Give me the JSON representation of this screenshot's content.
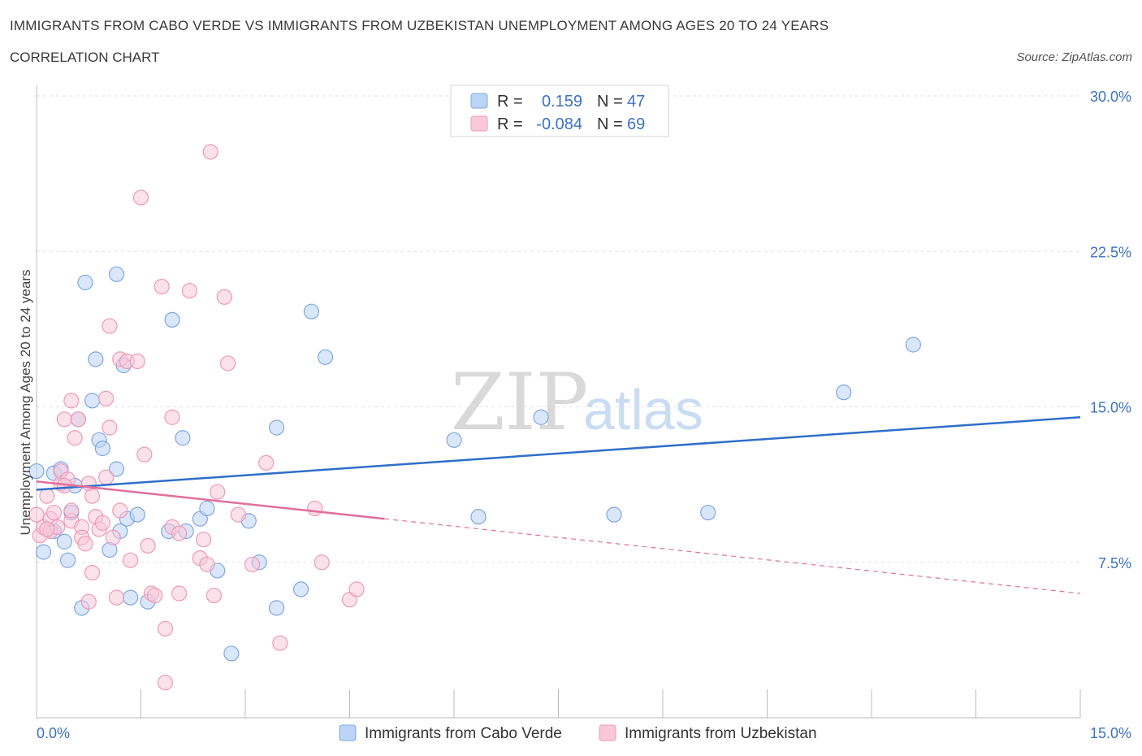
{
  "header": {
    "title": "IMMIGRANTS FROM CABO VERDE VS IMMIGRANTS FROM UZBEKISTAN UNEMPLOYMENT AMONG AGES 20 TO 24 YEARS",
    "subtitle": "CORRELATION CHART",
    "source": "Source: ZipAtlas.com"
  },
  "watermark": {
    "zip": "ZIP",
    "atlas": "atlas"
  },
  "legend": {
    "series1": {
      "r_label": "R =",
      "r_value": "0.159",
      "n_label": "N =",
      "n_value": "47"
    },
    "series2": {
      "r_label": "R =",
      "r_value": "-0.084",
      "n_label": "N =",
      "n_value": "69"
    }
  },
  "colors": {
    "blue_fill": "#bcd4f5",
    "blue_stroke": "#7fa7e0",
    "blue_line": "#2f6fc9",
    "pink_fill": "#f8c8d8",
    "pink_stroke": "#ee9ab6",
    "pink_line": "#e0709a",
    "grid": "#dde3ea",
    "axis": "#bbbbbb"
  },
  "chart_data": {
    "type": "scatter",
    "title": "IMMIGRANTS FROM CABO VERDE VS IMMIGRANTS FROM UZBEKISTAN UNEMPLOYMENT AMONG AGES 20 TO 24 YEARS",
    "xlabel": "",
    "ylabel": "Unemployment Among Ages 20 to 24 years",
    "xlim": [
      0,
      15
    ],
    "ylim": [
      0,
      30
    ],
    "x_tick_labels": [
      "0.0%",
      "15.0%"
    ],
    "y_ticks": [
      7.5,
      15.0,
      22.5,
      30.0
    ],
    "y_tick_labels": [
      "7.5%",
      "15.0%",
      "22.5%",
      "30.0%"
    ],
    "grid": true,
    "legend_position": "top-center",
    "series": [
      {
        "name": "Immigrants from Cabo Verde",
        "color": "#bcd4f5",
        "r": 0.159,
        "n": 47,
        "trend": {
          "x": [
            0,
            15
          ],
          "y": [
            11.0,
            14.5
          ],
          "solid_to": 15
        },
        "points": [
          [
            0.0,
            11.9
          ],
          [
            0.1,
            8.0
          ],
          [
            0.25,
            11.8
          ],
          [
            0.35,
            12.0
          ],
          [
            0.25,
            9.0
          ],
          [
            0.4,
            8.5
          ],
          [
            0.45,
            7.6
          ],
          [
            0.5,
            9.9
          ],
          [
            0.55,
            11.2
          ],
          [
            0.6,
            14.4
          ],
          [
            0.65,
            5.3
          ],
          [
            0.7,
            21.0
          ],
          [
            0.8,
            15.3
          ],
          [
            0.85,
            17.3
          ],
          [
            0.9,
            13.4
          ],
          [
            0.95,
            13.0
          ],
          [
            1.05,
            8.1
          ],
          [
            1.15,
            12.0
          ],
          [
            1.15,
            21.4
          ],
          [
            1.25,
            17.0
          ],
          [
            1.3,
            9.6
          ],
          [
            1.35,
            5.8
          ],
          [
            1.45,
            9.8
          ],
          [
            1.6,
            5.6
          ],
          [
            1.9,
            9.0
          ],
          [
            1.95,
            19.2
          ],
          [
            2.1,
            13.5
          ],
          [
            2.15,
            9.0
          ],
          [
            2.35,
            9.6
          ],
          [
            2.45,
            10.1
          ],
          [
            2.6,
            7.1
          ],
          [
            2.8,
            3.1
          ],
          [
            3.05,
            9.5
          ],
          [
            3.2,
            7.5
          ],
          [
            3.45,
            14.0
          ],
          [
            3.45,
            5.3
          ],
          [
            3.8,
            6.2
          ],
          [
            3.95,
            19.6
          ],
          [
            4.15,
            17.4
          ],
          [
            6.0,
            13.4
          ],
          [
            6.35,
            9.7
          ],
          [
            7.25,
            14.5
          ],
          [
            8.3,
            9.8
          ],
          [
            9.65,
            9.9
          ],
          [
            11.6,
            15.7
          ],
          [
            12.6,
            18.0
          ],
          [
            1.2,
            9.0
          ]
        ]
      },
      {
        "name": "Immigrants from Uzbekistan",
        "color": "#f8c8d8",
        "r": -0.084,
        "n": 69,
        "trend": {
          "x": [
            0,
            15
          ],
          "y": [
            11.4,
            6.0
          ],
          "solid_to": 5.0
        },
        "points": [
          [
            0.0,
            9.8
          ],
          [
            0.05,
            8.8
          ],
          [
            0.1,
            9.2
          ],
          [
            0.15,
            10.7
          ],
          [
            0.2,
            9.0
          ],
          [
            0.2,
            9.6
          ],
          [
            0.25,
            9.9
          ],
          [
            0.3,
            9.2
          ],
          [
            0.35,
            11.3
          ],
          [
            0.35,
            11.9
          ],
          [
            0.4,
            14.4
          ],
          [
            0.45,
            11.5
          ],
          [
            0.5,
            9.5
          ],
          [
            0.5,
            10.0
          ],
          [
            0.5,
            15.3
          ],
          [
            0.55,
            13.5
          ],
          [
            0.6,
            14.4
          ],
          [
            0.65,
            9.2
          ],
          [
            0.65,
            8.7
          ],
          [
            0.7,
            8.4
          ],
          [
            0.75,
            5.6
          ],
          [
            0.75,
            11.3
          ],
          [
            0.8,
            10.7
          ],
          [
            0.8,
            7.0
          ],
          [
            0.85,
            9.7
          ],
          [
            0.9,
            9.1
          ],
          [
            0.95,
            9.4
          ],
          [
            1.0,
            15.4
          ],
          [
            1.0,
            11.6
          ],
          [
            1.05,
            14.0
          ],
          [
            1.05,
            18.9
          ],
          [
            1.1,
            8.7
          ],
          [
            1.15,
            5.8
          ],
          [
            1.2,
            10.0
          ],
          [
            1.2,
            17.3
          ],
          [
            1.3,
            17.2
          ],
          [
            1.35,
            7.6
          ],
          [
            1.45,
            17.2
          ],
          [
            1.5,
            25.1
          ],
          [
            1.55,
            12.7
          ],
          [
            1.6,
            8.3
          ],
          [
            1.65,
            6.0
          ],
          [
            1.7,
            5.9
          ],
          [
            1.8,
            20.8
          ],
          [
            1.85,
            4.3
          ],
          [
            1.85,
            1.7
          ],
          [
            1.95,
            9.2
          ],
          [
            1.95,
            14.5
          ],
          [
            2.05,
            8.9
          ],
          [
            2.05,
            6.0
          ],
          [
            2.2,
            20.6
          ],
          [
            2.35,
            7.7
          ],
          [
            2.4,
            8.6
          ],
          [
            2.45,
            7.4
          ],
          [
            2.5,
            27.3
          ],
          [
            2.55,
            5.9
          ],
          [
            2.6,
            10.9
          ],
          [
            2.7,
            20.3
          ],
          [
            2.75,
            17.1
          ],
          [
            2.9,
            9.8
          ],
          [
            3.1,
            7.4
          ],
          [
            3.3,
            12.3
          ],
          [
            3.5,
            3.6
          ],
          [
            4.0,
            10.1
          ],
          [
            4.1,
            7.5
          ],
          [
            4.5,
            5.7
          ],
          [
            4.6,
            6.2
          ],
          [
            0.15,
            9.1
          ],
          [
            0.4,
            11.2
          ]
        ]
      }
    ]
  },
  "bottom_legend": {
    "series1_label": "Immigrants from Cabo Verde",
    "series2_label": "Immigrants from Uzbekistan"
  }
}
